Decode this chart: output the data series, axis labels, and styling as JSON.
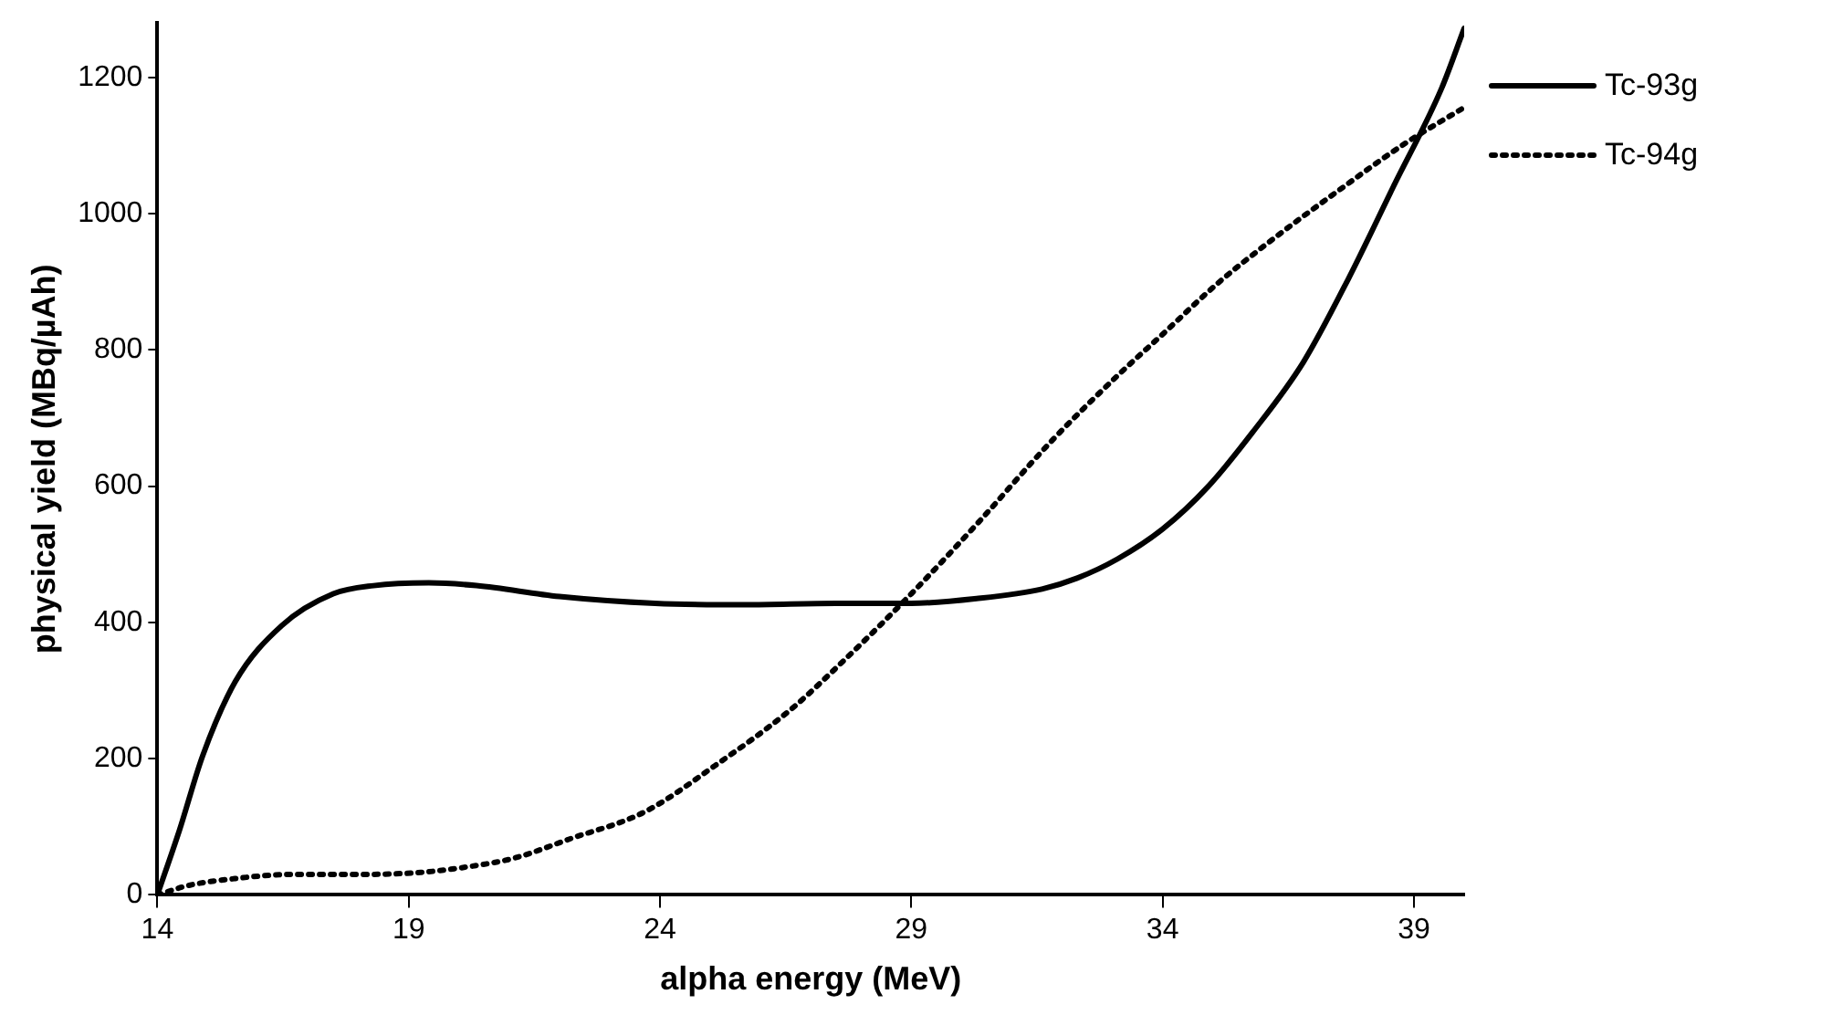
{
  "chart_data": {
    "type": "line",
    "xlabel": "alpha energy (MeV)",
    "ylabel": "physical yield (MBq/µAh)",
    "xlim": [
      14,
      40
    ],
    "xticks": [
      14,
      19,
      24,
      29,
      34,
      39
    ],
    "ylim": [
      0,
      1280
    ],
    "yticks": [
      0,
      200,
      400,
      600,
      800,
      1000,
      1200
    ],
    "grid": false,
    "legend": "right",
    "marker": "none",
    "series": [
      {
        "name": "Tc-93g",
        "color": "#000000",
        "line_style": "solid",
        "x": [
          14,
          14.44,
          14.9,
          15.55,
          16.47,
          17.5,
          18.3,
          19.4,
          20.35,
          22,
          23.9,
          25.7,
          27.5,
          29,
          30.3,
          31.6,
          32.3,
          33.1,
          34,
          34.9,
          35.8,
          36.8,
          37.7,
          38.6,
          39.55,
          40
        ],
        "values": [
          0,
          95,
          204,
          313,
          395,
          442,
          454,
          458,
          454,
          438,
          428,
          426,
          428,
          428,
          435,
          449,
          465,
          493,
          537,
          599,
          680,
          782,
          905,
          1041,
          1184,
          1272
        ]
      },
      {
        "name": "Tc-94g",
        "color": "#000000",
        "line_style": "dotted",
        "x": [
          14,
          14.63,
          15.55,
          16.66,
          17.95,
          19.24,
          20.16,
          21.1,
          22.2,
          23.7,
          25.1,
          26.6,
          27.7,
          29,
          30.3,
          31.8,
          33.1,
          34,
          35.1,
          36.2,
          37.5,
          38.8,
          40
        ],
        "values": [
          0,
          14,
          24,
          30,
          30,
          33,
          41,
          54,
          82,
          122,
          190,
          272,
          347,
          442,
          544,
          667,
          762,
          823,
          898,
          963,
          1034,
          1102,
          1156
        ]
      }
    ]
  }
}
